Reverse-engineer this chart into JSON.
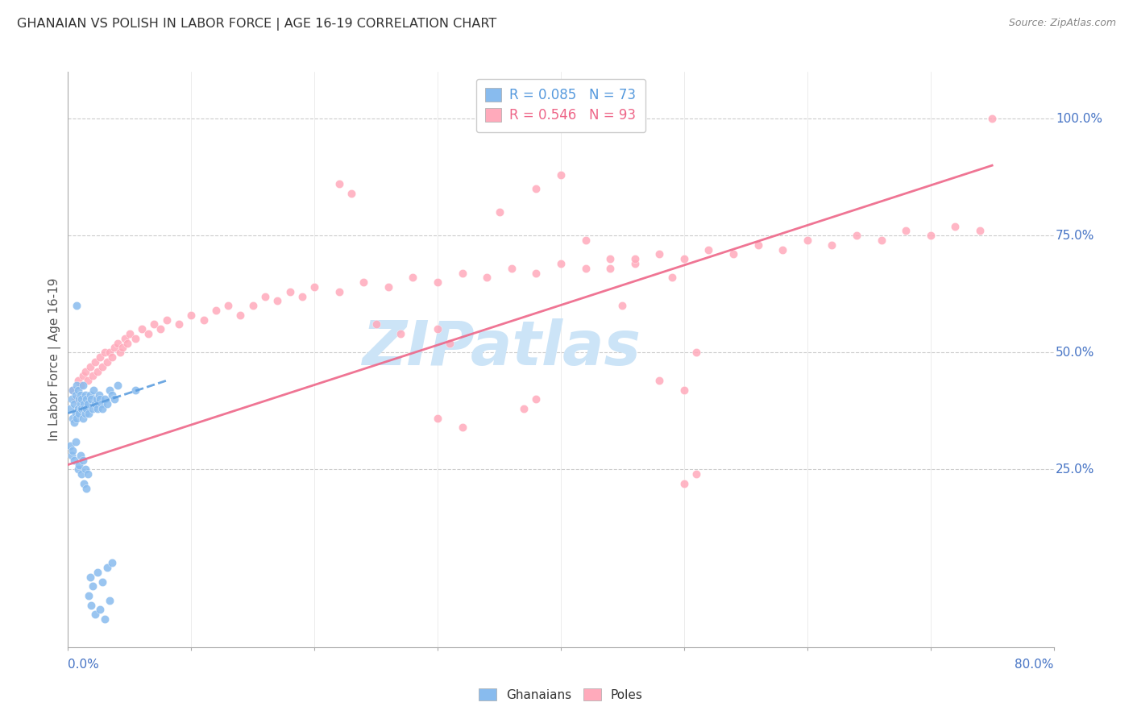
{
  "title": "GHANAIAN VS POLISH IN LABOR FORCE | AGE 16-19 CORRELATION CHART",
  "source": "Source: ZipAtlas.com",
  "ylabel": "In Labor Force | Age 16-19",
  "right_yticklabels": [
    "25.0%",
    "50.0%",
    "75.0%",
    "100.0%"
  ],
  "right_ytick_positions": [
    0.25,
    0.5,
    0.75,
    1.0
  ],
  "bottom_legend": [
    "Ghanaians",
    "Poles"
  ],
  "ghanaian_color": "#88bbee",
  "pole_color": "#ffaabb",
  "ghanaian_line_color": "#5599dd",
  "pole_line_color": "#ee6688",
  "watermark": "ZIPatlas",
  "watermark_color": "#cce4f7",
  "xlim": [
    0.0,
    0.8
  ],
  "ylim": [
    -0.13,
    1.1
  ],
  "legend_line1": "R = 0.085   N = 73",
  "legend_line2": "R = 0.546   N = 93",
  "legend_color1": "#5599dd",
  "legend_color2": "#ee6688",
  "ghanaians_x": [
    0.002,
    0.003,
    0.004,
    0.004,
    0.005,
    0.005,
    0.006,
    0.006,
    0.007,
    0.007,
    0.008,
    0.008,
    0.009,
    0.009,
    0.01,
    0.01,
    0.011,
    0.011,
    0.012,
    0.012,
    0.013,
    0.013,
    0.014,
    0.014,
    0.015,
    0.015,
    0.016,
    0.017,
    0.018,
    0.019,
    0.02,
    0.021,
    0.022,
    0.023,
    0.024,
    0.025,
    0.026,
    0.027,
    0.028,
    0.03,
    0.032,
    0.034,
    0.036,
    0.038,
    0.04,
    0.002,
    0.003,
    0.004,
    0.005,
    0.006,
    0.007,
    0.008,
    0.009,
    0.01,
    0.011,
    0.012,
    0.013,
    0.014,
    0.015,
    0.016,
    0.017,
    0.018,
    0.019,
    0.02,
    0.022,
    0.024,
    0.026,
    0.028,
    0.03,
    0.032,
    0.034,
    0.036,
    0.055
  ],
  "ghanaians_y": [
    0.38,
    0.4,
    0.36,
    0.42,
    0.35,
    0.39,
    0.37,
    0.41,
    0.36,
    0.43,
    0.38,
    0.42,
    0.4,
    0.37,
    0.39,
    0.41,
    0.38,
    0.4,
    0.36,
    0.43,
    0.39,
    0.38,
    0.41,
    0.37,
    0.4,
    0.38,
    0.39,
    0.37,
    0.41,
    0.4,
    0.38,
    0.42,
    0.39,
    0.4,
    0.38,
    0.41,
    0.4,
    0.39,
    0.38,
    0.4,
    0.39,
    0.42,
    0.41,
    0.4,
    0.43,
    0.3,
    0.28,
    0.29,
    0.27,
    0.31,
    0.6,
    0.25,
    0.26,
    0.28,
    0.24,
    0.27,
    0.22,
    0.25,
    0.21,
    0.24,
    -0.02,
    0.02,
    -0.04,
    0.0,
    -0.06,
    0.03,
    -0.05,
    0.01,
    -0.07,
    0.04,
    -0.03,
    0.05,
    0.42
  ],
  "poles_x": [
    0.004,
    0.006,
    0.008,
    0.01,
    0.012,
    0.014,
    0.016,
    0.018,
    0.02,
    0.022,
    0.024,
    0.026,
    0.028,
    0.03,
    0.032,
    0.034,
    0.036,
    0.038,
    0.04,
    0.042,
    0.044,
    0.046,
    0.048,
    0.05,
    0.055,
    0.06,
    0.065,
    0.07,
    0.075,
    0.08,
    0.09,
    0.1,
    0.11,
    0.12,
    0.13,
    0.14,
    0.15,
    0.16,
    0.17,
    0.18,
    0.19,
    0.2,
    0.22,
    0.24,
    0.26,
    0.28,
    0.3,
    0.32,
    0.34,
    0.36,
    0.38,
    0.4,
    0.42,
    0.44,
    0.46,
    0.48,
    0.5,
    0.52,
    0.54,
    0.56,
    0.58,
    0.6,
    0.62,
    0.64,
    0.66,
    0.68,
    0.7,
    0.72,
    0.74,
    0.75,
    0.25,
    0.27,
    0.3,
    0.32,
    0.35,
    0.3,
    0.31,
    0.48,
    0.5,
    0.44,
    0.51,
    0.38,
    0.4,
    0.22,
    0.23,
    0.45,
    0.42,
    0.46,
    0.37,
    0.38,
    0.49,
    0.5,
    0.51
  ],
  "poles_y": [
    0.42,
    0.4,
    0.44,
    0.43,
    0.45,
    0.46,
    0.44,
    0.47,
    0.45,
    0.48,
    0.46,
    0.49,
    0.47,
    0.5,
    0.48,
    0.5,
    0.49,
    0.51,
    0.52,
    0.5,
    0.51,
    0.53,
    0.52,
    0.54,
    0.53,
    0.55,
    0.54,
    0.56,
    0.55,
    0.57,
    0.56,
    0.58,
    0.57,
    0.59,
    0.6,
    0.58,
    0.6,
    0.62,
    0.61,
    0.63,
    0.62,
    0.64,
    0.63,
    0.65,
    0.64,
    0.66,
    0.65,
    0.67,
    0.66,
    0.68,
    0.67,
    0.69,
    0.68,
    0.7,
    0.69,
    0.71,
    0.7,
    0.72,
    0.71,
    0.73,
    0.72,
    0.74,
    0.73,
    0.75,
    0.74,
    0.76,
    0.75,
    0.77,
    0.76,
    1.0,
    0.56,
    0.54,
    0.36,
    0.34,
    0.8,
    0.55,
    0.52,
    0.44,
    0.42,
    0.68,
    0.5,
    0.85,
    0.88,
    0.86,
    0.84,
    0.6,
    0.74,
    0.7,
    0.38,
    0.4,
    0.66,
    0.22,
    0.24
  ],
  "ghanaian_trend": [
    0.0,
    0.08
  ],
  "ghanaian_trend_y": [
    0.37,
    0.44
  ],
  "pole_trend": [
    0.0,
    0.75
  ],
  "pole_trend_y": [
    0.26,
    0.9
  ]
}
